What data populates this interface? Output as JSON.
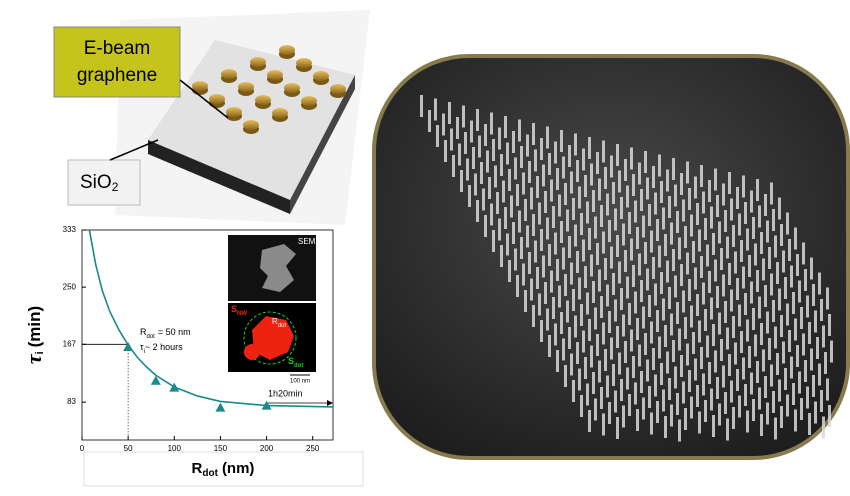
{
  "illustration": {
    "callout": "E-beam graphene",
    "substrate": {
      "base": "SiO",
      "sub": "2"
    }
  },
  "chart_data": {
    "type": "scatter",
    "x_label": {
      "base": "R",
      "sub": "dot",
      "unit": "(nm)"
    },
    "y_label": {
      "base": "τ",
      "sub": "i",
      "unit": "(min)"
    },
    "xlim": [
      0,
      272
    ],
    "ylim": [
      28,
      333
    ],
    "xticks": [
      0,
      50,
      100,
      150,
      200,
      250
    ],
    "yticks": [
      83,
      167,
      250,
      333
    ],
    "series": [
      {
        "color": "#1a8a8a",
        "x": [
          50,
          80,
          100,
          150,
          200
        ],
        "values": [
          163,
          114,
          104,
          75,
          78
        ]
      }
    ],
    "fit": {
      "color": "#1a8a8a",
      "x": [
        8,
        15,
        22,
        30,
        40,
        50,
        60,
        70,
        80,
        100,
        125,
        150,
        200,
        272
      ],
      "values": [
        333,
        282,
        245,
        215,
        188,
        166,
        148,
        134,
        122,
        105,
        92,
        84,
        78,
        76
      ]
    },
    "guide": {
      "x": 50,
      "y": 167
    },
    "annotations": [
      {
        "base": "R",
        "sub": "dot",
        "rest": "= 50 nm"
      },
      {
        "base": "τ",
        "sub": "i",
        "rest": "~ 2 hours"
      },
      {
        "text": "1h20min"
      }
    ],
    "inset": {
      "top": "SEM",
      "s_nw": {
        "base": "S",
        "sub": "NW"
      },
      "r_dot": {
        "base": "R",
        "sub": "dot"
      },
      "s_dot": {
        "base": "S",
        "sub": "dot"
      },
      "scale": "100 nm"
    }
  }
}
